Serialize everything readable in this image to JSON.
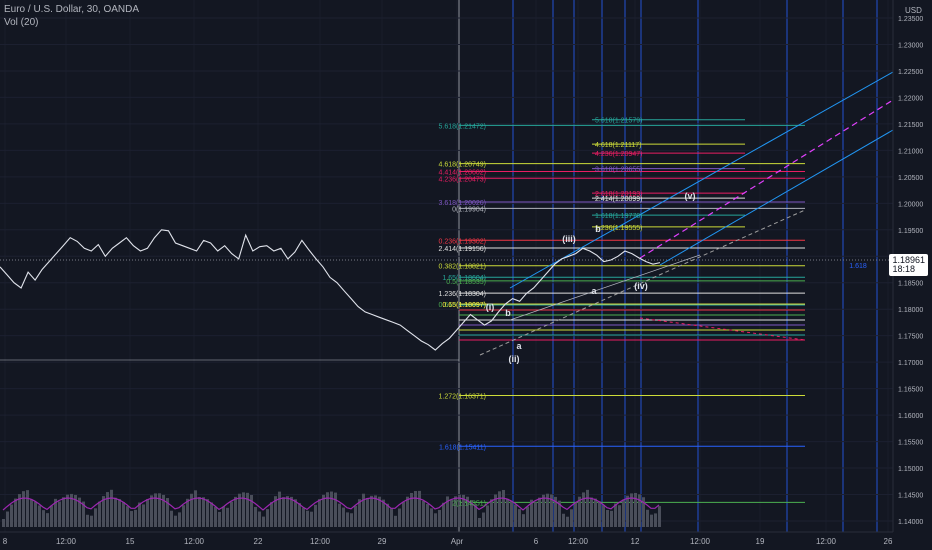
{
  "header": {
    "symbol": "Euro / U.S. Dollar, 30, OANDA",
    "volume_label": "Vol (20)"
  },
  "price_badge": {
    "price": "1.18961",
    "countdown": "18:18"
  },
  "colors": {
    "background": "#131722",
    "price_line": "#e0e3eb",
    "volume": "#4a4e5a",
    "volume_ma": "#9c27b0",
    "vertical_lines": "#2962ff",
    "channel": "#2196f3",
    "dashed_channel": "#9e9e9e",
    "magenta_dash": "#e040fb"
  },
  "chart_data": {
    "type": "line",
    "title": "Euro / U.S. Dollar, 30, OANDA",
    "y_axis_unit": "USD",
    "ylim": [
      1.1375,
      1.2375
    ],
    "y_ticks": [
      "1.23500",
      "1.23000",
      "1.22500",
      "1.22000",
      "1.21500",
      "1.21000",
      "1.20500",
      "1.20000",
      "1.19500",
      "1.19000",
      "1.18500",
      "1.18000",
      "1.17500",
      "1.17000",
      "1.16500",
      "1.16000",
      "1.15500",
      "1.15000",
      "1.14500",
      "1.14000"
    ],
    "x_ticks": [
      "8",
      "12:00",
      "15",
      "12:00",
      "22",
      "12:00",
      "29",
      "Apr",
      "6",
      "12:00",
      "12",
      "12:00",
      "19",
      "12:00",
      "26"
    ],
    "price_series": [
      1.188,
      1.1865,
      1.185,
      1.184,
      1.187,
      1.1855,
      1.1875,
      1.189,
      1.1905,
      1.192,
      1.1935,
      1.1928,
      1.1915,
      1.191,
      1.1922,
      1.19,
      1.1915,
      1.1925,
      1.1935,
      1.192,
      1.191,
      1.1915,
      1.1935,
      1.195,
      1.1948,
      1.1925,
      1.192,
      1.1915,
      1.191,
      1.193,
      1.1925,
      1.191,
      1.192,
      1.1905,
      1.1895,
      1.194,
      1.191,
      1.1918,
      1.192,
      1.191,
      1.1915,
      1.1895,
      1.1908,
      1.193,
      1.1912,
      1.1895,
      1.188,
      1.186,
      1.185,
      1.1835,
      1.182,
      1.1805,
      1.1795,
      1.179,
      1.1785,
      1.178,
      1.1775,
      1.177,
      1.176,
      1.175,
      1.174,
      1.1733,
      1.1723,
      1.1735,
      1.1745,
      1.176,
      1.1775,
      1.179,
      1.178,
      1.177,
      1.1778,
      1.1795,
      1.181,
      1.182,
      1.1815,
      1.183,
      1.184,
      1.1855,
      1.187,
      1.1885,
      1.1895,
      1.19,
      1.1905,
      1.1915,
      1.191,
      1.1902,
      1.189,
      1.1893,
      1.19,
      1.191,
      1.1905,
      1.1897,
      1.189,
      1.1885,
      1.1888
    ],
    "fib_labels": [
      {
        "text": "5.618(1.21472)",
        "color": "#26a69a"
      },
      {
        "text": "4.618(1.20749)",
        "color": "#cddc39"
      },
      {
        "text": "4.414(1.20602)",
        "color": "#e91e63"
      },
      {
        "text": "4.236(1.20473)",
        "color": "#e91e63"
      },
      {
        "text": "3.618(1.20026)",
        "color": "#7e57c2"
      },
      {
        "text": "0(1.19904)",
        "color": "#b2b5be"
      },
      {
        "text": "0.236(1.19302)",
        "color": "#f23645"
      },
      {
        "text": "2.414(1.19156)",
        "color": "#e0e0e0"
      },
      {
        "text": "0.382(1.18821)",
        "color": "#cddc39"
      },
      {
        "text": "1.65(1.18604)",
        "color": "#26a69a"
      },
      {
        "text": "0.5(1.18535)",
        "color": "#4caf50"
      },
      {
        "text": "1.236(1.18304)",
        "color": "#e0e0e0"
      },
      {
        "text": "0.618(1.18097)",
        "color": "#4caf50"
      },
      {
        "text": "0.65(1.18097)",
        "color": "#ffeb3b"
      },
      {
        "text": "1.272(1.16371)",
        "color": "#cddc39"
      },
      {
        "text": "1.618(1.15411)",
        "color": "#2962ff"
      },
      {
        "text": "2(1.14351)",
        "color": "#4caf50"
      },
      {
        "text": "5.618(1.21579)",
        "color": "#26a69a"
      },
      {
        "text": "4.618(1.21117)",
        "color": "#cddc39"
      },
      {
        "text": "4.236(1.20947)",
        "color": "#e91e63"
      },
      {
        "text": "3.618(1.20655)",
        "color": "#7e57c2"
      },
      {
        "text": "2.618(1.20193)",
        "color": "#e91e63"
      },
      {
        "text": "2.414(1.20099)",
        "color": "#e0e0e0"
      },
      {
        "text": "1.618(1.19778)",
        "color": "#26a69a"
      },
      {
        "text": "1.236(1.19555)",
        "color": "#cddc39"
      },
      {
        "text": "1.618",
        "color": "#2962ff"
      }
    ],
    "wave_labels": [
      "(i)",
      "(ii)",
      "(iii)",
      "(iv)",
      "(v)",
      "a",
      "b",
      "a",
      "b"
    ],
    "fib_levels": [
      1.21472,
      1.20749,
      1.20602,
      1.20473,
      1.20026,
      1.19904,
      1.19302,
      1.19156,
      1.18821,
      1.18604,
      1.18535,
      1.18304,
      1.18097,
      1.16371,
      1.15411,
      1.14351
    ]
  }
}
